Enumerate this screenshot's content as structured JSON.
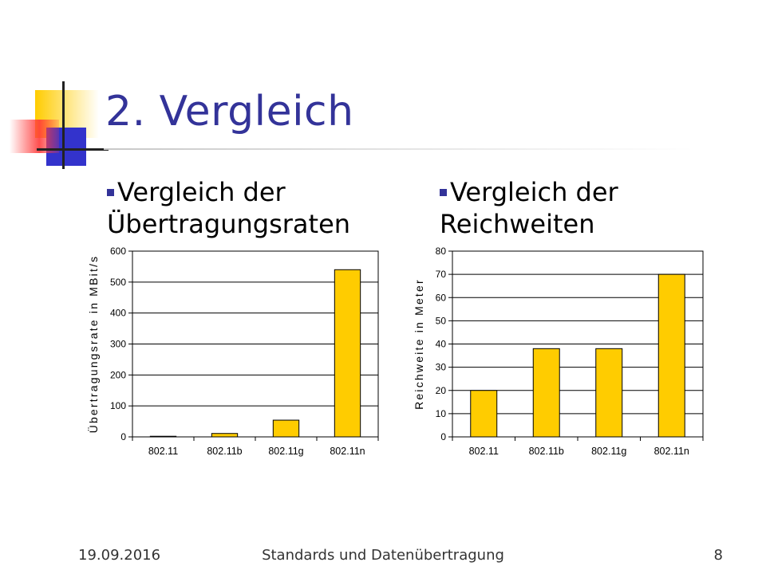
{
  "slide": {
    "title": "2. Vergleich",
    "accent_color": "#333399",
    "bar_color": "#FFCC00"
  },
  "bullets": [
    {
      "text": "Vergleich der Übertragungsraten"
    },
    {
      "text": "Vergleich der Reichweiten"
    }
  ],
  "chart_data": [
    {
      "type": "bar",
      "categories": [
        "802.11",
        "802.11b",
        "802.11g",
        "802.11n"
      ],
      "values": [
        2,
        11,
        54,
        540
      ],
      "ylabel": "Übertragungsrate in MBit/s",
      "ylim": [
        0,
        600
      ],
      "yticks": [
        0,
        100,
        200,
        300,
        400,
        500,
        600
      ],
      "grid": true,
      "legend": "none"
    },
    {
      "type": "bar",
      "categories": [
        "802.11",
        "802.11b",
        "802.11g",
        "802.11n"
      ],
      "values": [
        20,
        38,
        38,
        70
      ],
      "ylabel": "Reichweite in Meter",
      "ylim": [
        0,
        80
      ],
      "yticks": [
        0,
        10,
        20,
        30,
        40,
        50,
        60,
        70,
        80
      ],
      "grid": true,
      "legend": "none"
    }
  ],
  "footer": {
    "date": "19.09.2016",
    "center": "Standards und Datenübertragung",
    "page": "8"
  }
}
